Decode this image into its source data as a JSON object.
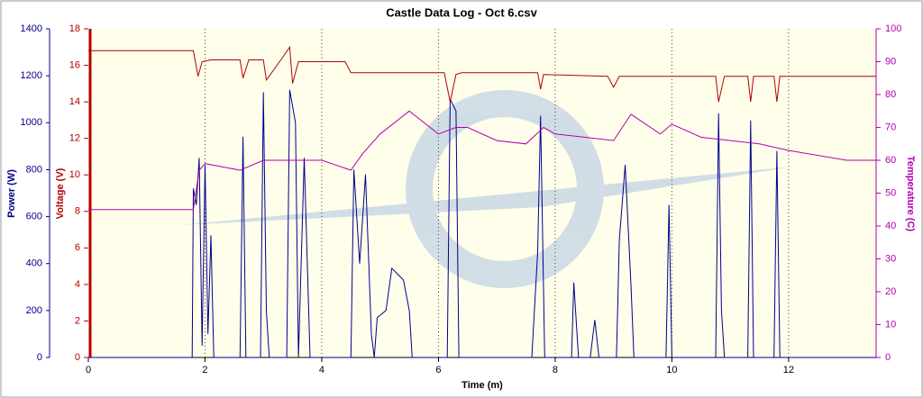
{
  "chart_data": {
    "type": "line",
    "title": "Castle Data Log - Oct 6.csv",
    "xlabel": "Time (m)",
    "xlim": [
      0,
      13.5
    ],
    "xticks": [
      0,
      2,
      4,
      6,
      8,
      10,
      12
    ],
    "xgrid": true,
    "ylabel": "Power (W)",
    "ylim": [
      0,
      1400
    ],
    "yticks": [
      0,
      200,
      400,
      600,
      800,
      1000,
      1200,
      1400
    ],
    "ycolor": "#00008b",
    "y2label": "Voltage (V)",
    "y2lim": [
      0,
      18
    ],
    "y2ticks": [
      0,
      2,
      4,
      6,
      8,
      10,
      12,
      14,
      16,
      18
    ],
    "y2color": "#b00000",
    "y3label": "Temperature (C)",
    "y3lim": [
      0,
      100
    ],
    "y3ticks": [
      0,
      10,
      20,
      30,
      40,
      50,
      60,
      70,
      80,
      90,
      100
    ],
    "y3color": "#b000b0",
    "series": [
      {
        "axis": "y",
        "color": "#00008b",
        "x": [
          0,
          1.78,
          1.8,
          1.85,
          1.9,
          1.95,
          2.0,
          2.05,
          2.1,
          2.15,
          2.6,
          2.65,
          2.7,
          2.95,
          3.0,
          3.05,
          3.1,
          3.4,
          3.45,
          3.55,
          3.6,
          3.7,
          3.8,
          4.5,
          4.55,
          4.65,
          4.75,
          4.85,
          4.9,
          4.95,
          5.1,
          5.2,
          5.4,
          5.5,
          5.55,
          6.15,
          6.2,
          6.3,
          6.35,
          7.6,
          7.7,
          7.75,
          7.82,
          8.28,
          8.32,
          8.4,
          8.6,
          8.68,
          8.75,
          9.05,
          9.1,
          9.2,
          9.3,
          9.35,
          9.9,
          9.95,
          10.0,
          10.75,
          10.8,
          10.85,
          10.9,
          11.3,
          11.35,
          11.4,
          11.75,
          11.8,
          11.85,
          13.5
        ],
        "values": [
          0,
          0,
          720,
          650,
          850,
          50,
          820,
          100,
          520,
          0,
          0,
          940,
          0,
          0,
          1130,
          200,
          0,
          0,
          1140,
          1000,
          0,
          850,
          0,
          0,
          800,
          400,
          780,
          100,
          0,
          170,
          200,
          380,
          330,
          200,
          0,
          0,
          1100,
          1050,
          0,
          0,
          450,
          1030,
          0,
          0,
          320,
          0,
          0,
          160,
          0,
          0,
          500,
          820,
          300,
          0,
          0,
          650,
          0,
          0,
          1040,
          200,
          0,
          0,
          1010,
          0,
          0,
          880,
          0,
          0
        ]
      },
      {
        "axis": "y2",
        "color": "#b00000",
        "x": [
          0,
          1.8,
          1.88,
          1.95,
          2.1,
          2.6,
          2.65,
          2.75,
          3.0,
          3.05,
          3.3,
          3.45,
          3.5,
          3.6,
          3.7,
          4.4,
          4.5,
          4.6,
          6.1,
          6.2,
          6.3,
          6.4,
          7.7,
          7.75,
          7.8,
          8.9,
          9.0,
          9.1,
          10.75,
          10.8,
          10.9,
          11.3,
          11.35,
          11.4,
          11.75,
          11.8,
          11.85,
          13.5
        ],
        "values": [
          16.8,
          16.8,
          15.4,
          16.2,
          16.3,
          16.3,
          15.3,
          16.3,
          16.3,
          15.2,
          16.3,
          17.0,
          15.0,
          16.2,
          16.2,
          16.2,
          15.6,
          15.6,
          15.6,
          14.0,
          15.5,
          15.6,
          15.6,
          14.7,
          15.5,
          15.4,
          14.8,
          15.4,
          15.4,
          14.0,
          15.4,
          15.4,
          14.0,
          15.4,
          15.4,
          14.0,
          15.4,
          15.4
        ]
      },
      {
        "axis": "y3",
        "color": "#b000b0",
        "x": [
          0,
          1.8,
          1.9,
          2.0,
          2.6,
          3.0,
          3.5,
          4.0,
          4.5,
          4.7,
          5.0,
          5.5,
          6.0,
          6.3,
          6.5,
          7.0,
          7.5,
          7.8,
          8.0,
          8.5,
          9.0,
          9.3,
          9.8,
          10.0,
          10.5,
          11.0,
          11.5,
          12.0,
          13.0,
          13.5
        ],
        "values": [
          45,
          45,
          57,
          59,
          57,
          60,
          60,
          60,
          57,
          62,
          68,
          75,
          68,
          70,
          70,
          66,
          65,
          70,
          68,
          67,
          66,
          74,
          68,
          71,
          67,
          66,
          65,
          63,
          60,
          60
        ]
      }
    ]
  }
}
